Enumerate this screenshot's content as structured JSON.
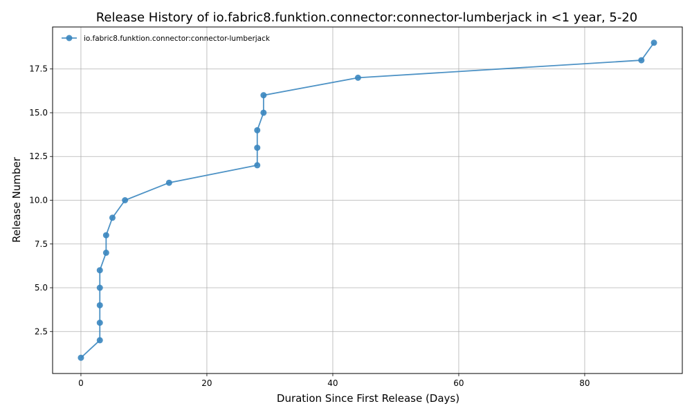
{
  "chart_data": {
    "type": "line",
    "title": "Release History of io.fabric8.funktion.connector:connector-lumberjack in <1 year, 5-20",
    "xlabel": "Duration Since First Release (Days)",
    "ylabel": "Release Number",
    "xlim": [
      -4.5,
      95.5
    ],
    "ylim": [
      0.1,
      19.9
    ],
    "xticks": [
      0,
      20,
      40,
      60,
      80
    ],
    "yticks": [
      2.5,
      5.0,
      7.5,
      10.0,
      12.5,
      15.0,
      17.5
    ],
    "ytick_labels": [
      "2.5",
      "5.0",
      "7.5",
      "10.0",
      "12.5",
      "15.0",
      "17.5"
    ],
    "grid": true,
    "legend_position": "top-left",
    "color": "#3a86bf",
    "series": [
      {
        "name": "io.fabric8.funktion.connector:connector-lumberjack",
        "x": [
          0,
          3,
          3,
          3,
          3,
          3,
          4,
          4,
          5,
          7,
          14,
          28,
          28,
          28,
          29,
          29,
          44,
          89,
          91
        ],
        "y": [
          1,
          2,
          3,
          4,
          5,
          6,
          7,
          8,
          9,
          10,
          11,
          12,
          13,
          14,
          15,
          16,
          17,
          18,
          19
        ]
      }
    ]
  }
}
